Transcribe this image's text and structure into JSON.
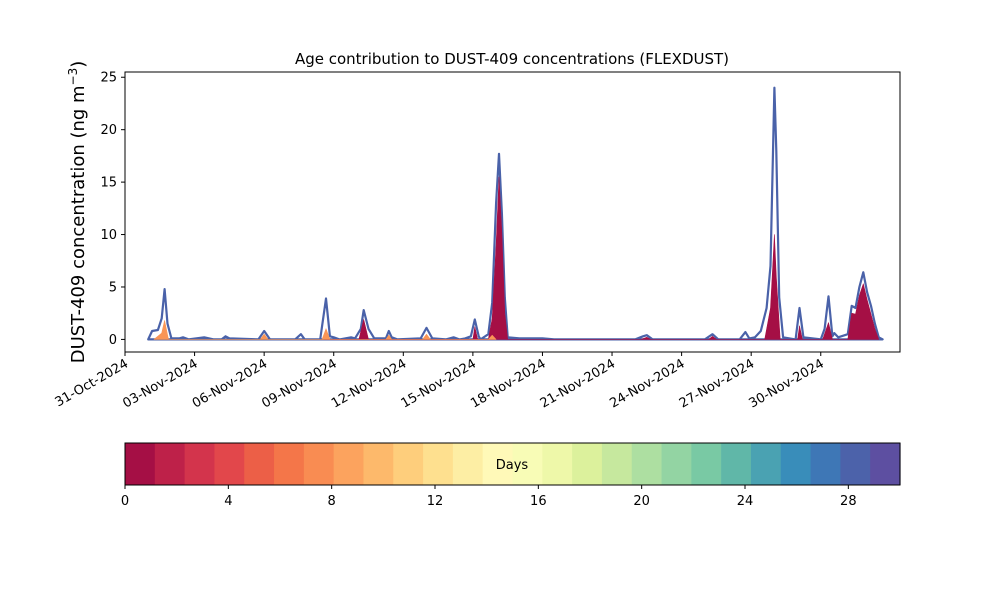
{
  "chart_data": {
    "type": "area",
    "title": "Age contribution to DUST-409 concentrations (FLEXDUST)",
    "ylabel": "DUST-409 concentration (ng m",
    "ylabel_sup": "−3",
    "ylabel_end": ")",
    "xlabel": "",
    "x_range": [
      "2024-10-31T00:00",
      "2024-12-03T10:00"
    ],
    "ylim": [
      -1.2,
      25.5
    ],
    "y_ticks": [
      0,
      5,
      10,
      15,
      20,
      25
    ],
    "y_tick_labels": [
      "0",
      "5",
      "10",
      "15",
      "20",
      "25"
    ],
    "x_ticks": [
      "2024-10-31",
      "2024-11-03",
      "2024-11-06",
      "2024-11-09",
      "2024-11-12",
      "2024-11-15",
      "2024-11-18",
      "2024-11-21",
      "2024-11-24",
      "2024-11-27",
      "2024-11-30"
    ],
    "x_tick_labels": [
      "31-Oct-2024",
      "03-Nov-2024",
      "06-Nov-2024",
      "09-Nov-2024",
      "12-Nov-2024",
      "15-Nov-2024",
      "18-Nov-2024",
      "21-Nov-2024",
      "24-Nov-2024",
      "27-Nov-2024",
      "30-Nov-2024"
    ],
    "grid": false,
    "series": [
      {
        "role": "total",
        "color": "#4a62a9",
        "points": [
          [
            "2024-11-01T00:00",
            0.0
          ],
          [
            "2024-11-01T04:00",
            0.8
          ],
          [
            "2024-11-01T10:00",
            0.9
          ],
          [
            "2024-11-01T14:00",
            2.0
          ],
          [
            "2024-11-01T17:00",
            4.8
          ],
          [
            "2024-11-01T20:00",
            1.5
          ],
          [
            "2024-11-02T00:00",
            0.1
          ],
          [
            "2024-11-02T08:00",
            0.1
          ],
          [
            "2024-11-02T12:00",
            0.2
          ],
          [
            "2024-11-02T18:00",
            0.0
          ],
          [
            "2024-11-03T10:00",
            0.2
          ],
          [
            "2024-11-03T20:00",
            0.0
          ],
          [
            "2024-11-04T04:00",
            0.0
          ],
          [
            "2024-11-04T08:00",
            0.3
          ],
          [
            "2024-11-04T12:00",
            0.1
          ],
          [
            "2024-11-05T18:00",
            0.0
          ],
          [
            "2024-11-06T00:00",
            0.8
          ],
          [
            "2024-11-06T06:00",
            0.0
          ],
          [
            "2024-11-07T08:00",
            0.0
          ],
          [
            "2024-11-07T14:00",
            0.5
          ],
          [
            "2024-11-07T18:00",
            0.0
          ],
          [
            "2024-11-08T10:00",
            0.0
          ],
          [
            "2024-11-08T16:00",
            3.9
          ],
          [
            "2024-11-08T20:00",
            0.3
          ],
          [
            "2024-11-09T00:00",
            0.2
          ],
          [
            "2024-11-09T06:00",
            0.0
          ],
          [
            "2024-11-09T18:00",
            0.2
          ],
          [
            "2024-11-09T22:00",
            0.1
          ],
          [
            "2024-11-10T04:00",
            1.0
          ],
          [
            "2024-11-10T07:00",
            2.8
          ],
          [
            "2024-11-10T12:00",
            1.0
          ],
          [
            "2024-11-10T18:00",
            0.1
          ],
          [
            "2024-11-11T06:00",
            0.1
          ],
          [
            "2024-11-11T09:00",
            0.8
          ],
          [
            "2024-11-11T12:00",
            0.2
          ],
          [
            "2024-11-11T18:00",
            0.0
          ],
          [
            "2024-11-12T18:00",
            0.1
          ],
          [
            "2024-11-13T00:00",
            1.1
          ],
          [
            "2024-11-13T06:00",
            0.1
          ],
          [
            "2024-11-13T20:00",
            0.0
          ],
          [
            "2024-11-14T04:00",
            0.2
          ],
          [
            "2024-11-14T10:00",
            0.0
          ],
          [
            "2024-11-14T16:00",
            0.1
          ],
          [
            "2024-11-14T22:00",
            0.3
          ],
          [
            "2024-11-15T02:00",
            1.9
          ],
          [
            "2024-11-15T06:00",
            0.3
          ],
          [
            "2024-11-15T08:00",
            0.0
          ],
          [
            "2024-11-15T16:00",
            0.5
          ],
          [
            "2024-11-15T20:00",
            3.5
          ],
          [
            "2024-11-16T00:00",
            13.0
          ],
          [
            "2024-11-16T03:00",
            17.7
          ],
          [
            "2024-11-16T06:00",
            12.0
          ],
          [
            "2024-11-16T09:00",
            4.0
          ],
          [
            "2024-11-16T12:00",
            0.2
          ],
          [
            "2024-11-17T00:00",
            0.1
          ],
          [
            "2024-11-17T12:00",
            0.1
          ],
          [
            "2024-11-18T00:00",
            0.1
          ],
          [
            "2024-11-18T12:00",
            0.0
          ],
          [
            "2024-11-22T00:00",
            0.0
          ],
          [
            "2024-11-22T08:00",
            0.3
          ],
          [
            "2024-11-22T12:00",
            0.4
          ],
          [
            "2024-11-22T18:00",
            0.0
          ],
          [
            "2024-11-25T00:00",
            0.0
          ],
          [
            "2024-11-25T08:00",
            0.5
          ],
          [
            "2024-11-25T14:00",
            0.0
          ],
          [
            "2024-11-26T12:00",
            0.0
          ],
          [
            "2024-11-26T18:00",
            0.7
          ],
          [
            "2024-11-26T22:00",
            0.1
          ],
          [
            "2024-11-27T04:00",
            0.2
          ],
          [
            "2024-11-27T10:00",
            0.8
          ],
          [
            "2024-11-27T16:00",
            3.0
          ],
          [
            "2024-11-27T20:00",
            7.0
          ],
          [
            "2024-11-28T00:00",
            24.0
          ],
          [
            "2024-11-28T02:00",
            18.0
          ],
          [
            "2024-11-28T05:00",
            4.0
          ],
          [
            "2024-11-28T09:00",
            0.2
          ],
          [
            "2024-11-28T22:00",
            0.0
          ],
          [
            "2024-11-29T02:00",
            3.0
          ],
          [
            "2024-11-29T06:00",
            0.2
          ],
          [
            "2024-11-30T00:00",
            0.0
          ],
          [
            "2024-11-30T04:00",
            1.0
          ],
          [
            "2024-11-30T08:00",
            4.1
          ],
          [
            "2024-11-30T12:00",
            0.3
          ],
          [
            "2024-11-30T14:00",
            0.6
          ],
          [
            "2024-11-30T18:00",
            0.2
          ],
          [
            "2024-12-01T04:00",
            0.5
          ],
          [
            "2024-12-01T08:00",
            3.2
          ],
          [
            "2024-12-01T12:00",
            3.0
          ],
          [
            "2024-12-01T16:00",
            5.0
          ],
          [
            "2024-12-01T20:00",
            6.4
          ],
          [
            "2024-12-02T00:00",
            4.5
          ],
          [
            "2024-12-02T04:00",
            3.2
          ],
          [
            "2024-12-02T08:00",
            1.5
          ],
          [
            "2024-12-02T12:00",
            0.2
          ],
          [
            "2024-12-02T16:00",
            0.0
          ]
        ]
      },
      {
        "role": "age 0-1 days",
        "color": "#a50f45",
        "points": [
          [
            "2024-11-08T14:00",
            0.0
          ],
          [
            "2024-11-08T16:00",
            1.0
          ],
          [
            "2024-11-08T19:00",
            0.0
          ],
          [
            "2024-11-10T02:00",
            0.0
          ],
          [
            "2024-11-10T07:00",
            1.9
          ],
          [
            "2024-11-10T12:00",
            0.0
          ],
          [
            "2024-11-15T00:00",
            0.0
          ],
          [
            "2024-11-15T02:00",
            1.2
          ],
          [
            "2024-11-15T05:00",
            0.0
          ],
          [
            "2024-11-15T16:00",
            0.0
          ],
          [
            "2024-11-15T20:00",
            2.0
          ],
          [
            "2024-11-16T00:00",
            9.0
          ],
          [
            "2024-11-16T03:00",
            15.5
          ],
          [
            "2024-11-16T06:00",
            10.0
          ],
          [
            "2024-11-16T09:00",
            2.5
          ],
          [
            "2024-11-16T12:00",
            0.0
          ],
          [
            "2024-11-22T06:00",
            0.0
          ],
          [
            "2024-11-22T12:00",
            0.2
          ],
          [
            "2024-11-22T16:00",
            0.0
          ],
          [
            "2024-11-25T04:00",
            0.0
          ],
          [
            "2024-11-25T08:00",
            0.3
          ],
          [
            "2024-11-25T12:00",
            0.0
          ],
          [
            "2024-11-27T14:00",
            0.0
          ],
          [
            "2024-11-27T20:00",
            3.0
          ],
          [
            "2024-11-28T00:00",
            10.0
          ],
          [
            "2024-11-28T02:00",
            6.0
          ],
          [
            "2024-11-28T06:00",
            0.0
          ],
          [
            "2024-11-29T00:00",
            0.0
          ],
          [
            "2024-11-29T02:00",
            1.3
          ],
          [
            "2024-11-29T05:00",
            0.0
          ],
          [
            "2024-11-30T02:00",
            0.0
          ],
          [
            "2024-11-30T08:00",
            1.6
          ],
          [
            "2024-11-30T12:00",
            0.0
          ],
          [
            "2024-12-01T04:00",
            0.0
          ],
          [
            "2024-12-01T08:00",
            2.5
          ],
          [
            "2024-12-01T12:00",
            2.4
          ],
          [
            "2024-12-01T16:00",
            4.2
          ],
          [
            "2024-12-01T20:00",
            5.3
          ],
          [
            "2024-12-02T00:00",
            3.8
          ],
          [
            "2024-12-02T04:00",
            2.4
          ],
          [
            "2024-12-02T08:00",
            1.0
          ],
          [
            "2024-12-02T12:00",
            0.0
          ]
        ]
      },
      {
        "role": "age 7-8 days",
        "color": "#f99556",
        "points": [
          [
            "2024-11-01T06:00",
            0.0
          ],
          [
            "2024-11-01T14:00",
            0.6
          ],
          [
            "2024-11-01T17:00",
            1.8
          ],
          [
            "2024-11-01T21:00",
            0.0
          ],
          [
            "2024-11-05T20:00",
            0.0
          ],
          [
            "2024-11-06T00:00",
            0.5
          ],
          [
            "2024-11-06T04:00",
            0.0
          ],
          [
            "2024-11-08T12:00",
            0.0
          ],
          [
            "2024-11-08T16:00",
            1.0
          ],
          [
            "2024-11-08T20:00",
            0.0
          ],
          [
            "2024-11-11T06:00",
            0.0
          ],
          [
            "2024-11-11T09:00",
            0.4
          ],
          [
            "2024-11-11T12:00",
            0.0
          ],
          [
            "2024-11-12T20:00",
            0.0
          ],
          [
            "2024-11-13T00:00",
            0.5
          ],
          [
            "2024-11-13T04:00",
            0.0
          ],
          [
            "2024-11-15T16:00",
            0.0
          ],
          [
            "2024-11-15T20:00",
            0.4
          ],
          [
            "2024-11-16T00:00",
            0.0
          ]
        ]
      }
    ],
    "colorbar": {
      "label": "Days",
      "range": [
        0,
        30
      ],
      "ticks": [
        0,
        4,
        8,
        12,
        16,
        20,
        24,
        28
      ],
      "tick_labels": [
        "0",
        "4",
        "8",
        "12",
        "16",
        "20",
        "24",
        "28"
      ],
      "colors": [
        "#a50f45",
        "#be2149",
        "#d3344c",
        "#e2474b",
        "#ec5f47",
        "#f47649",
        "#f98c52",
        "#fca35e",
        "#fdb96b",
        "#fece7c",
        "#fee08f",
        "#fdeea4",
        "#fff9b8",
        "#f8fcb6",
        "#eef8a9",
        "#dcf19c",
        "#c6e89e",
        "#addfa1",
        "#93d4a3",
        "#79c9a4",
        "#60b7a8",
        "#4aa2b2",
        "#398dba",
        "#3e77b6",
        "#4c62aa",
        "#5d4fa1"
      ]
    }
  }
}
